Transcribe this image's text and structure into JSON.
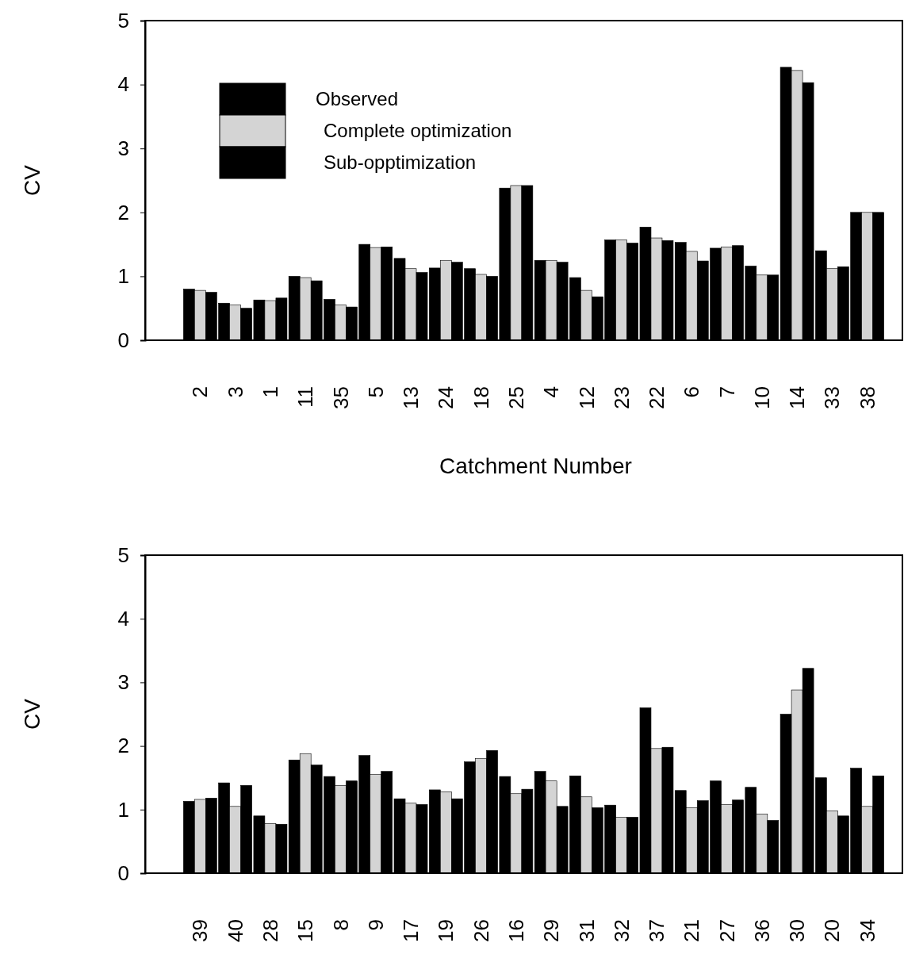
{
  "chart_data": [
    {
      "type": "bar",
      "xlabel": "Catchment Number",
      "ylabel": "CV",
      "ylim": [
        0,
        5
      ],
      "yticks": [
        0,
        1,
        2,
        3,
        4,
        5
      ],
      "legend": "top left",
      "categories": [
        "2",
        "3",
        "1",
        "11",
        "35",
        "5",
        "13",
        "24",
        "18",
        "25",
        "4",
        "12",
        "23",
        "22",
        "6",
        "7",
        "10",
        "14",
        "33",
        "38"
      ],
      "series": [
        {
          "name": "Observed",
          "color": "#000000",
          "values": [
            0.8,
            0.58,
            0.63,
            1.0,
            0.64,
            1.5,
            1.28,
            1.13,
            1.12,
            2.38,
            1.25,
            0.98,
            1.57,
            1.77,
            1.53,
            1.44,
            1.16,
            4.27,
            1.4,
            2.0
          ]
        },
        {
          "name": "Complete optimization",
          "color": "#d4d4d4",
          "values": [
            0.78,
            0.55,
            0.62,
            0.98,
            0.55,
            1.45,
            1.12,
            1.25,
            1.03,
            2.42,
            1.25,
            0.78,
            1.57,
            1.6,
            1.39,
            1.46,
            1.02,
            4.22,
            1.12,
            2.0
          ]
        },
        {
          "name": "Sub-opptimization",
          "color": "#000000",
          "values": [
            0.75,
            0.5,
            0.66,
            0.93,
            0.52,
            1.46,
            1.06,
            1.22,
            1.0,
            2.42,
            1.22,
            0.68,
            1.52,
            1.56,
            1.24,
            1.48,
            1.02,
            4.03,
            1.15,
            2.0
          ]
        }
      ]
    },
    {
      "type": "bar",
      "ylabel": "CV",
      "ylim": [
        0,
        5
      ],
      "yticks": [
        0,
        1,
        2,
        3,
        4,
        5
      ],
      "categories": [
        "39",
        "40",
        "28",
        "15",
        "8",
        "9",
        "17",
        "19",
        "26",
        "16",
        "29",
        "31",
        "32",
        "37",
        "21",
        "27",
        "36",
        "30",
        "20",
        "34"
      ],
      "series": [
        {
          "color": "#000000",
          "values": [
            1.13,
            1.42,
            0.9,
            1.78,
            1.52,
            1.85,
            1.17,
            1.31,
            1.75,
            1.52,
            1.6,
            1.53,
            1.07,
            2.6,
            1.3,
            1.45,
            1.35,
            2.5,
            1.5,
            1.65
          ]
        },
        {
          "color": "#d4d4d4",
          "values": [
            1.16,
            1.05,
            0.78,
            1.88,
            1.38,
            1.55,
            1.1,
            1.28,
            1.8,
            1.25,
            1.45,
            1.2,
            0.88,
            1.96,
            1.03,
            1.08,
            0.93,
            2.88,
            0.98,
            1.05
          ]
        },
        {
          "color": "#000000",
          "values": [
            1.18,
            1.38,
            0.77,
            1.7,
            1.45,
            1.6,
            1.08,
            1.17,
            1.93,
            1.32,
            1.05,
            1.03,
            0.88,
            1.98,
            1.14,
            1.15,
            0.83,
            3.22,
            0.9,
            1.53
          ]
        }
      ]
    }
  ]
}
